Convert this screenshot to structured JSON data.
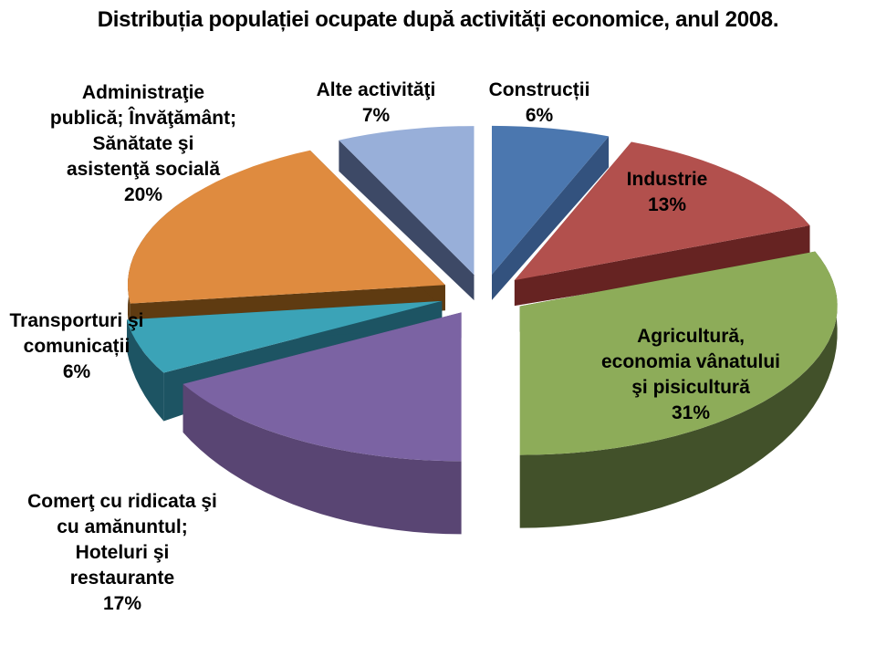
{
  "title": "Distribuția populației ocupate după activități economice, anul 2008.",
  "chart_data": {
    "type": "pie",
    "style": "3d-exploded",
    "title": "Distribuția populației ocupate după activități economice, anul 2008.",
    "unit": "%",
    "start_angle_deg": 0,
    "direction": "clockwise",
    "background": "#ffffff",
    "slices": [
      {
        "id": "constructii",
        "label": "Construcții",
        "value": 6,
        "pct_label": "6%",
        "color": "#4b77af",
        "side_color": "#33527e",
        "label_lines": [
          "Construcții"
        ],
        "label_placement": "outside"
      },
      {
        "id": "industrie",
        "label": "Industrie",
        "value": 13,
        "pct_label": "13%",
        "color": "#b2504d",
        "side_color": "#662322",
        "label_lines": [
          "Industrie"
        ],
        "label_placement": "inside"
      },
      {
        "id": "agricultura",
        "label": "Agricultură, economia vânatului şi pisicultură",
        "value": 31,
        "pct_label": "31%",
        "color": "#8dac59",
        "side_color": "#42512a",
        "label_lines": [
          "Agricultură,",
          "economia vânatului",
          "şi pisicultură"
        ],
        "label_placement": "inside"
      },
      {
        "id": "comert",
        "label": "Comerţ cu ridicata şi cu amănuntul; Hoteluri şi restaurante",
        "value": 17,
        "pct_label": "17%",
        "color": "#7b63a3",
        "side_color": "#594573",
        "label_lines": [
          "Comerţ cu ridicata şi",
          "cu amănuntul;",
          "Hoteluri şi",
          "restaurante"
        ],
        "label_placement": "outside"
      },
      {
        "id": "transporturi",
        "label": "Transporturi şi comunicații",
        "value": 6,
        "pct_label": "6%",
        "color": "#3ba3b7",
        "side_color": "#1d5463",
        "label_lines": [
          "Transporturi şi",
          "comunicații"
        ],
        "label_placement": "outside"
      },
      {
        "id": "administratie",
        "label": "Administraţie publică; Învăţământ; Sănătate şi asistenţă socială",
        "value": 20,
        "pct_label": "20%",
        "color": "#df8b3f",
        "side_color": "#5f3b11",
        "label_lines": [
          "Administraţie",
          "publică; Învăţământ;",
          "Sănătate şi",
          "asistenţă socială"
        ],
        "label_placement": "outside"
      },
      {
        "id": "alte",
        "label": "Alte activităţi",
        "value": 7,
        "pct_label": "7%",
        "color": "#98afd9",
        "side_color": "#3d4966",
        "label_lines": [
          "Alte activităţi"
        ],
        "label_placement": "outside"
      }
    ]
  }
}
